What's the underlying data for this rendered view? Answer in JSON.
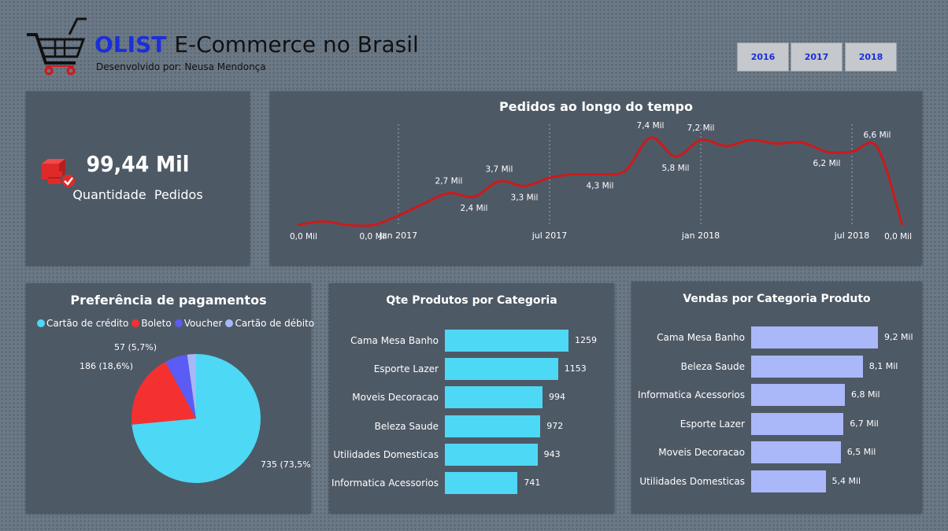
{
  "header": {
    "brand": "OLIST",
    "title": "E-Commerce no Brasil",
    "subtitle": "Desenvolvido por: Neusa Mendonça",
    "logo_icon": "shopping-cart-icon",
    "years": [
      "2016",
      "2017",
      "2018"
    ]
  },
  "kpi": {
    "value": "99,44 Mil",
    "label": "Quantidade  Pedidos",
    "icon": "boxes-check-icon"
  },
  "colors": {
    "line": "#cc1a1a",
    "pie": [
      "#4dd8f5",
      "#f53030",
      "#5b5cf5",
      "#a9b7f7"
    ],
    "bar_qty": "#4dd8f5",
    "bar_sales": "#aab8fa",
    "brand": "#1a2fd9"
  },
  "line_chart": {
    "title": "Pedidos ao longo do tempo",
    "chart_data": {
      "type": "line",
      "x": [
        "2016-09",
        "2016-10",
        "2016-11",
        "2016-12",
        "2017-01",
        "2017-02",
        "2017-03",
        "2017-04",
        "2017-05",
        "2017-06",
        "2017-07",
        "2017-08",
        "2017-09",
        "2017-10",
        "2017-11",
        "2017-12",
        "2018-01",
        "2018-02",
        "2018-03",
        "2018-04",
        "2018-05",
        "2018-06",
        "2018-07",
        "2018-08",
        "2018-09"
      ],
      "values_mil": [
        0.0,
        0.3,
        0.0,
        0.0,
        0.8,
        1.8,
        2.7,
        2.4,
        3.7,
        3.3,
        4.0,
        4.3,
        4.3,
        4.6,
        7.4,
        5.8,
        7.2,
        6.7,
        7.2,
        6.9,
        7.0,
        6.2,
        6.2,
        6.6,
        0.0
      ],
      "point_labels": [
        {
          "i": 0,
          "text": "0,0 Mil"
        },
        {
          "i": 3,
          "text": "0,0 Mil"
        },
        {
          "i": 6,
          "text": "2,7 Mil"
        },
        {
          "i": 7,
          "text": "2,4 Mil"
        },
        {
          "i": 8,
          "text": "3,7 Mil"
        },
        {
          "i": 9,
          "text": "3,3 Mil"
        },
        {
          "i": 12,
          "text": "4,3 Mil"
        },
        {
          "i": 14,
          "text": "7,4 Mil"
        },
        {
          "i": 15,
          "text": "5,8 Mil"
        },
        {
          "i": 16,
          "text": "7,2 Mil"
        },
        {
          "i": 21,
          "text": "6,2 Mil"
        },
        {
          "i": 23,
          "text": "6,6 Mil"
        },
        {
          "i": 24,
          "text": "0,0 Mil"
        }
      ],
      "x_ticks": [
        {
          "i": 4,
          "label": "jan 2017"
        },
        {
          "i": 10,
          "label": "jul 2017"
        },
        {
          "i": 16,
          "label": "jan 2018"
        },
        {
          "i": 22,
          "label": "jul 2018"
        }
      ],
      "ylim": [
        0,
        8
      ]
    }
  },
  "pie_chart": {
    "title": "Preferência de pagamentos",
    "chart_data": {
      "type": "pie",
      "labels": [
        "Cartão de crédito",
        "Boleto",
        "Voucher",
        "Cartão de débito"
      ],
      "values": [
        735,
        186,
        57,
        22
      ],
      "data_labels": [
        "735 (73,5%)",
        "186 (18,6%)",
        "57 (5,7%)",
        ""
      ]
    }
  },
  "qty_chart": {
    "title": "Qte Produtos por Categoria",
    "chart_data": {
      "type": "bar",
      "orientation": "horizontal",
      "categories": [
        "Cama Mesa Banho",
        "Esporte Lazer",
        "Moveis Decoracao",
        "Beleza Saude",
        "Utilidades Domesticas",
        "Informatica Acessorios"
      ],
      "values": [
        1259,
        1153,
        994,
        972,
        943,
        741
      ],
      "value_labels": [
        "1259",
        "1153",
        "994",
        "972",
        "943",
        "741"
      ]
    }
  },
  "sales_chart": {
    "title": "Vendas por Categoria Produto",
    "chart_data": {
      "type": "bar",
      "orientation": "horizontal",
      "categories": [
        "Cama Mesa Banho",
        "Beleza Saude",
        "Informatica Acessorios",
        "Esporte Lazer",
        "Moveis Decoracao",
        "Utilidades Domesticas"
      ],
      "values": [
        9.2,
        8.1,
        6.8,
        6.7,
        6.5,
        5.4
      ],
      "value_labels": [
        "9,2 Mil",
        "8,1 Mil",
        "6,8 Mil",
        "6,7 Mil",
        "6,5 Mil",
        "5,4 Mil"
      ],
      "units": "Mil"
    }
  }
}
